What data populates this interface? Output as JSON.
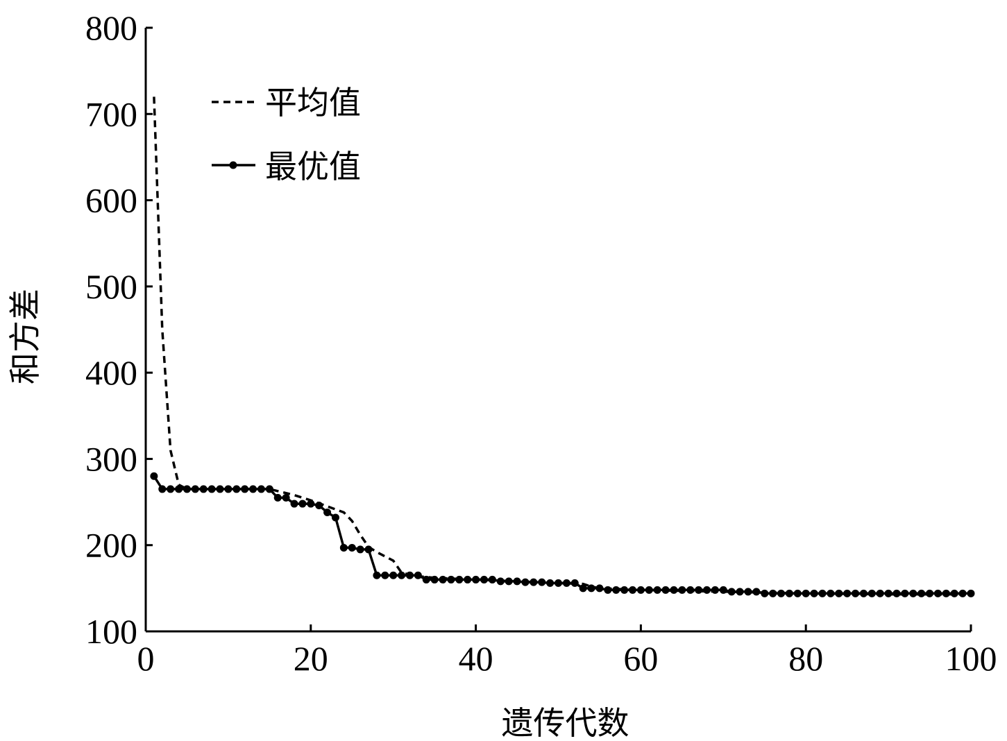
{
  "chart_data": {
    "type": "line",
    "title": "",
    "xlabel": "遗传代数",
    "ylabel": "和方差",
    "xlim": [
      0,
      100
    ],
    "ylim": [
      100,
      800
    ],
    "xticks": [
      0,
      20,
      40,
      60,
      80,
      100
    ],
    "yticks": [
      100,
      200,
      300,
      400,
      500,
      600,
      700,
      800
    ],
    "grid": false,
    "legend_position": "top-left",
    "series": [
      {
        "name": "平均值",
        "style": "dashed",
        "color": "#000000",
        "x": [
          1,
          2,
          3,
          4,
          5,
          10,
          15,
          18,
          20,
          22,
          24,
          25,
          26,
          27,
          28,
          30,
          31,
          33,
          35,
          40,
          50,
          53,
          54,
          55,
          60,
          70,
          80,
          90,
          100
        ],
        "y": [
          720,
          450,
          310,
          270,
          265,
          265,
          265,
          258,
          252,
          245,
          238,
          228,
          212,
          198,
          192,
          182,
          168,
          164,
          162,
          160,
          156,
          155,
          152,
          150,
          148,
          146,
          144,
          143,
          143
        ]
      },
      {
        "name": "最优值",
        "style": "solid-marker",
        "color": "#000000",
        "x": [
          1,
          2,
          3,
          4,
          5,
          6,
          7,
          8,
          9,
          10,
          11,
          12,
          13,
          14,
          15,
          16,
          17,
          18,
          19,
          20,
          21,
          22,
          23,
          24,
          25,
          26,
          27,
          28,
          29,
          30,
          31,
          32,
          33,
          34,
          35,
          36,
          37,
          38,
          39,
          40,
          41,
          42,
          43,
          44,
          45,
          46,
          47,
          48,
          49,
          50,
          51,
          52,
          53,
          54,
          55,
          56,
          57,
          58,
          59,
          60,
          61,
          62,
          63,
          64,
          65,
          66,
          67,
          68,
          69,
          70,
          71,
          72,
          73,
          74,
          75,
          76,
          77,
          78,
          79,
          80,
          81,
          82,
          83,
          84,
          85,
          86,
          87,
          88,
          89,
          90,
          91,
          92,
          93,
          94,
          95,
          96,
          97,
          98,
          99,
          100
        ],
        "y": [
          280,
          265,
          265,
          265,
          265,
          265,
          265,
          265,
          265,
          265,
          265,
          265,
          265,
          265,
          265,
          255,
          255,
          248,
          248,
          248,
          246,
          238,
          232,
          197,
          197,
          195,
          195,
          165,
          165,
          165,
          165,
          165,
          165,
          160,
          160,
          160,
          160,
          160,
          160,
          160,
          160,
          160,
          158,
          158,
          158,
          157,
          157,
          157,
          156,
          156,
          156,
          156,
          150,
          150,
          150,
          148,
          148,
          148,
          148,
          148,
          148,
          148,
          148,
          148,
          148,
          148,
          148,
          148,
          148,
          148,
          146,
          146,
          146,
          146,
          144,
          144,
          144,
          144,
          144,
          144,
          144,
          144,
          144,
          144,
          144,
          144,
          144,
          144,
          144,
          144,
          144,
          144,
          144,
          144,
          144,
          144,
          144,
          144,
          144,
          144
        ]
      }
    ]
  }
}
